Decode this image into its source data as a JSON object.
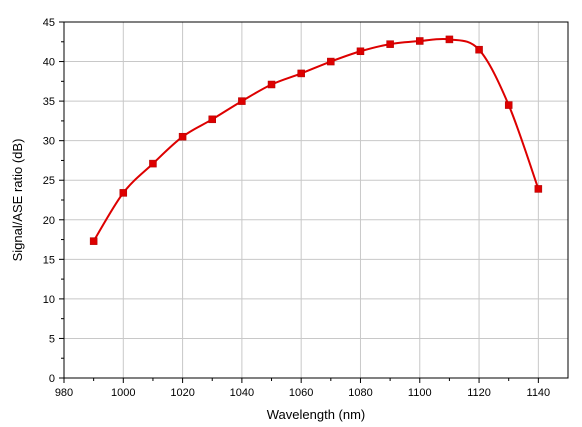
{
  "chart_data": {
    "type": "line",
    "title": "",
    "xlabel": "Wavelength (nm)",
    "ylabel": "Signal/ASE ratio (dB)",
    "xlim": [
      980,
      1150
    ],
    "ylim": [
      0,
      45
    ],
    "x_ticks": [
      980,
      1000,
      1020,
      1040,
      1060,
      1080,
      1100,
      1120,
      1140
    ],
    "y_ticks": [
      0,
      5,
      10,
      15,
      20,
      25,
      30,
      35,
      40,
      45
    ],
    "grid": true,
    "legend": "none",
    "series": [
      {
        "color": "#dd0000",
        "marker": "square",
        "line": "smooth",
        "x": [
          990,
          1000,
          1010,
          1020,
          1030,
          1040,
          1050,
          1060,
          1070,
          1080,
          1090,
          1100,
          1110,
          1120,
          1130,
          1140
        ],
        "y": [
          17.3,
          23.4,
          27.1,
          30.5,
          32.7,
          35.0,
          37.1,
          38.5,
          40.0,
          41.3,
          42.2,
          42.6,
          42.8,
          41.5,
          34.5,
          23.9
        ]
      }
    ]
  }
}
